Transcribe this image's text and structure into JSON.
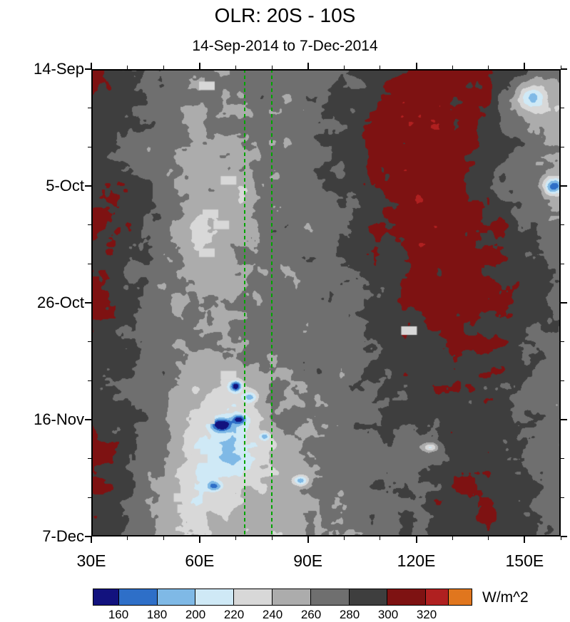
{
  "title": "OLR: 20S - 10S",
  "subtitle": "14-Sep-2014 to 7-Dec-2014",
  "colorbar": {
    "units": "W/m^2",
    "tick_labels": [
      "160",
      "180",
      "200",
      "220",
      "240",
      "260",
      "280",
      "300",
      "320"
    ]
  },
  "axes": {
    "x": {
      "range_lon": [
        30,
        160
      ],
      "minor_step": 10,
      "label_ticks": [
        {
          "lon": 30,
          "label": "30E"
        },
        {
          "lon": 60,
          "label": "60E"
        },
        {
          "lon": 90,
          "label": "90E"
        },
        {
          "lon": 120,
          "label": "120E"
        },
        {
          "lon": 150,
          "label": "150E"
        }
      ]
    },
    "y": {
      "range_days": [
        0,
        84
      ],
      "minor_step": 7,
      "label_ticks": [
        {
          "day": 0,
          "label": "14-Sep"
        },
        {
          "day": 21,
          "label": "5-Oct"
        },
        {
          "day": 42,
          "label": "26-Oct"
        },
        {
          "day": 63,
          "label": "16-Nov"
        },
        {
          "day": 84,
          "label": "7-Dec"
        }
      ]
    }
  },
  "chart_data": {
    "type": "heatmap",
    "title": "OLR: 20S - 10S",
    "date_range": "14-Sep-2014 to 7-Dec-2014",
    "units": "W/m^2",
    "x_lon": [
      30,
      40,
      50,
      60,
      70,
      80,
      90,
      100,
      110,
      120,
      130,
      140,
      150,
      160
    ],
    "y_days_from_14sep": [
      0,
      7,
      14,
      21,
      28,
      35,
      42,
      49,
      56,
      63,
      70,
      77,
      84
    ],
    "y_major_dates": [
      "14-Sep",
      "5-Oct",
      "26-Oct",
      "16-Nov",
      "7-Dec"
    ],
    "levels": [
      160,
      180,
      200,
      220,
      240,
      260,
      280,
      300,
      320,
      330
    ],
    "palette": [
      "#12127E",
      "#2E6FC8",
      "#7FB9E6",
      "#CFE9F6",
      "#D8D8D8",
      "#ACACAC",
      "#6F6F6F",
      "#3E3E3E",
      "#7E1212",
      "#B02020",
      "#E0761E"
    ],
    "missing_data_color": "#D8D8D8",
    "values_wm2": [
      [
        302,
        288,
        272,
        258,
        266,
        270,
        268,
        276,
        290,
        306,
        312,
        302,
        282,
        272
      ],
      [
        296,
        282,
        268,
        256,
        262,
        268,
        272,
        282,
        302,
        314,
        308,
        296,
        252,
        238
      ],
      [
        288,
        276,
        266,
        258,
        262,
        268,
        270,
        286,
        306,
        316,
        312,
        298,
        276,
        262
      ],
      [
        302,
        292,
        272,
        252,
        244,
        264,
        270,
        282,
        302,
        312,
        306,
        292,
        272,
        244
      ],
      [
        306,
        296,
        270,
        234,
        256,
        268,
        266,
        276,
        296,
        310,
        314,
        302,
        282,
        268
      ],
      [
        296,
        282,
        268,
        242,
        260,
        262,
        270,
        278,
        292,
        306,
        312,
        304,
        286,
        272
      ],
      [
        306,
        286,
        266,
        256,
        262,
        268,
        266,
        272,
        286,
        302,
        310,
        306,
        290,
        276
      ],
      [
        300,
        284,
        270,
        260,
        266,
        270,
        268,
        270,
        284,
        296,
        304,
        300,
        286,
        272
      ],
      [
        292,
        278,
        268,
        246,
        238,
        262,
        268,
        272,
        282,
        292,
        296,
        292,
        282,
        270
      ],
      [
        296,
        282,
        262,
        232,
        206,
        256,
        266,
        270,
        278,
        288,
        292,
        288,
        278,
        266
      ],
      [
        302,
        286,
        256,
        216,
        196,
        242,
        260,
        268,
        276,
        262,
        288,
        296,
        280,
        264
      ],
      [
        296,
        288,
        252,
        220,
        242,
        252,
        258,
        264,
        272,
        282,
        296,
        302,
        286,
        272
      ],
      [
        286,
        276,
        258,
        242,
        250,
        246,
        256,
        262,
        270,
        278,
        292,
        298,
        284,
        270
      ]
    ],
    "missing_data_patches": [
      {
        "lon": 62,
        "day": 3
      },
      {
        "lon": 68,
        "day": 20
      },
      {
        "lon": 63,
        "day": 26
      },
      {
        "lon": 66,
        "day": 28
      },
      {
        "lon": 62,
        "day": 33
      },
      {
        "lon": 118,
        "day": 47
      },
      {
        "lon": 68,
        "day": 55
      },
      {
        "lon": 64,
        "day": 61
      },
      {
        "lon": 62,
        "day": 63
      },
      {
        "lon": 58,
        "day": 69
      },
      {
        "lon": 60,
        "day": 70
      },
      {
        "lon": 55,
        "day": 77
      },
      {
        "lon": 56,
        "day": 79
      }
    ],
    "low_olr_spots": [
      {
        "lon": 152,
        "day": 5,
        "depth": 55,
        "rlon": 4,
        "rday": 2
      },
      {
        "lon": 158,
        "day": 21,
        "depth": 80,
        "rlon": 2.5,
        "rday": 1.4
      },
      {
        "lon": 70,
        "day": 57,
        "depth": 95,
        "rlon": 1.6,
        "rday": 0.9
      },
      {
        "lon": 74,
        "day": 59,
        "depth": 60,
        "rlon": 2,
        "rday": 0.9
      },
      {
        "lon": 66,
        "day": 64,
        "depth": 100,
        "rlon": 2.6,
        "rday": 1.1
      },
      {
        "lon": 71,
        "day": 63,
        "depth": 70,
        "rlon": 1.8,
        "rday": 0.8
      },
      {
        "lon": 78,
        "day": 66,
        "depth": 55,
        "rlon": 1.4,
        "rday": 0.8
      },
      {
        "lon": 124,
        "day": 68,
        "depth": 60,
        "rlon": 2,
        "rday": 0.8
      },
      {
        "lon": 88,
        "day": 74,
        "depth": 70,
        "rlon": 2.2,
        "rday": 1
      },
      {
        "lon": 64,
        "day": 75,
        "depth": 55,
        "rlon": 2,
        "rday": 0.9
      }
    ],
    "reference_lines_lon": [
      72.5,
      80
    ],
    "reference_line_color": "#00A400",
    "texture": {
      "seed": 20140914,
      "noise_amp_wm2": 34,
      "noise_scale_lon_deg": 4.5,
      "noise_scale_days": 2.6
    }
  }
}
